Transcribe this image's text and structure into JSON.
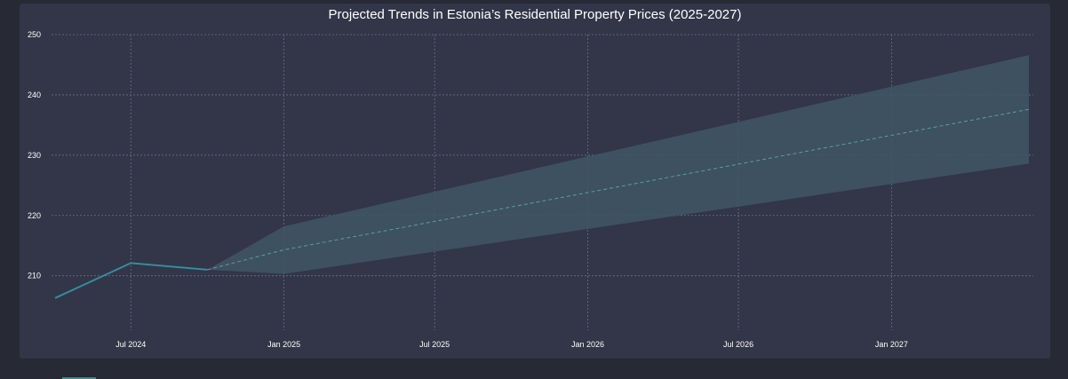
{
  "chart_data": {
    "type": "line",
    "title": "Projected Trends in Estonia’s Residential Property Prices (2025-2027)",
    "xlabel": "",
    "ylabel": "",
    "ylim": [
      202,
      250
    ],
    "xlim": [
      "2024-04-01",
      "2027-06-15"
    ],
    "grid": true,
    "y_ticks": [
      210,
      220,
      230,
      240,
      250
    ],
    "x_ticks": [
      {
        "date": "2024-07-01",
        "label": "Jul 2024"
      },
      {
        "date": "2025-01-01",
        "label": "Jan 2025"
      },
      {
        "date": "2025-07-01",
        "label": "Jul 2025"
      },
      {
        "date": "2026-01-01",
        "label": "Jan 2026"
      },
      {
        "date": "2026-07-01",
        "label": "Jul 2026"
      },
      {
        "date": "2027-01-01",
        "label": "Jan 2027"
      }
    ],
    "series": [
      {
        "role": "historical",
        "color": "#2f8f9d",
        "points": [
          {
            "x": "2024-04-01",
            "y": 206.3
          },
          {
            "x": "2024-07-01",
            "y": 212.1
          },
          {
            "x": "2024-10-01",
            "y": 211.0
          }
        ]
      },
      {
        "role": "forecast",
        "color": "#5f9ba6",
        "line_style": "dashed",
        "points": [
          {
            "x": "2024-10-01",
            "y": 211.0
          },
          {
            "x": "2025-01-01",
            "y": 214.3
          },
          {
            "x": "2027-06-15",
            "y": 237.6
          }
        ]
      }
    ],
    "confidence_band": {
      "color": "#3f5666",
      "upper": [
        {
          "x": "2024-10-01",
          "y": 211.0
        },
        {
          "x": "2025-01-01",
          "y": 218.2
        },
        {
          "x": "2027-06-15",
          "y": 246.6
        }
      ],
      "lower": [
        {
          "x": "2024-10-01",
          "y": 211.0
        },
        {
          "x": "2025-01-01",
          "y": 210.3
        },
        {
          "x": "2027-06-15",
          "y": 228.6
        }
      ]
    }
  }
}
